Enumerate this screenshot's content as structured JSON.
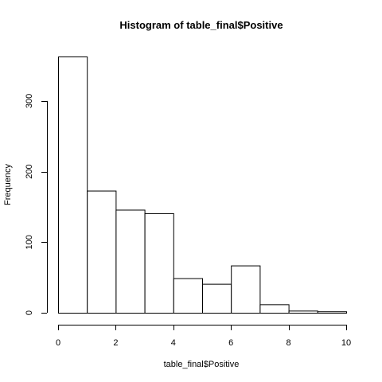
{
  "chart_data": {
    "type": "bar",
    "title": "Histogram of table_final$Positive",
    "xlabel": "table_final$Positive",
    "ylabel": "Frequency",
    "bins": [
      {
        "start": 0,
        "end": 1,
        "value": 363
      },
      {
        "start": 1,
        "end": 2,
        "value": 173
      },
      {
        "start": 2,
        "end": 3,
        "value": 146
      },
      {
        "start": 3,
        "end": 4,
        "value": 141
      },
      {
        "start": 4,
        "end": 5,
        "value": 49
      },
      {
        "start": 5,
        "end": 6,
        "value": 41
      },
      {
        "start": 6,
        "end": 7,
        "value": 67
      },
      {
        "start": 7,
        "end": 8,
        "value": 12
      },
      {
        "start": 8,
        "end": 9,
        "value": 3
      },
      {
        "start": 9,
        "end": 10,
        "value": 2
      }
    ],
    "x_ticks": [
      0,
      2,
      4,
      6,
      8,
      10
    ],
    "y_ticks": [
      0,
      100,
      200,
      300
    ],
    "xlim": [
      0,
      10
    ],
    "ylim": [
      0,
      363
    ],
    "grid": false,
    "legend": "none",
    "colors": {
      "bar_fill": "#ffffff",
      "bar_stroke": "#000000"
    }
  }
}
